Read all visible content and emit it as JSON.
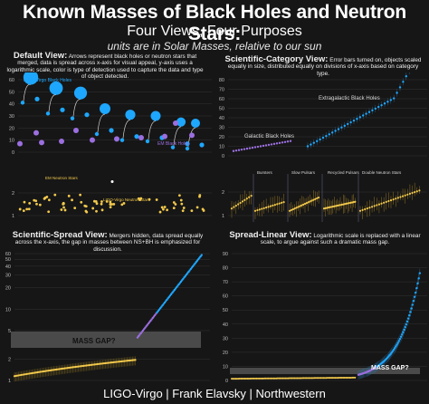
{
  "header": {
    "title": "Known Masses of Black Holes and Neutron Stars:",
    "subtitle": "Four Views, Four Purposes",
    "note": "units are in Solar Masses, relative to our sun"
  },
  "panels": {
    "default": {
      "name": "Default View:",
      "desc": "Arrows represent black holes or neutron stars that merged, data is spread across x-axis for visual appeal, y-axis uses a logarithmic scale, color is type of detection used to capture the data and type of object detected.",
      "labels": {
        "ligo": "LIGO-Virgo Black Holes",
        "em_bh": "EM Black Holes",
        "em_ns": "EM Neutron Stars",
        "ligo_ns": "LIGO-Virgo Neutron Stars"
      }
    },
    "category": {
      "name": "Scientific-Category View:",
      "desc": "Error bars turned on, objects scaled equally in size, distributed equally on divisions of x-axis based on category type.",
      "labels": {
        "galactic": "Galactic Black Holes",
        "extragalactic": "Extragalactic Black Holes",
        "bursters": "Bursters",
        "slow": "Slow Pulsars",
        "recycled": "Recycled Pulsars",
        "double": "Double Neutron Stars"
      }
    },
    "spread": {
      "name": "Scientific-Spread View:",
      "desc": "Mergers hidden, data spread equally across the x-axis, the gap in masses between NS+BH is emphasized for discussion.",
      "gap_label": "MASS GAP?"
    },
    "linear": {
      "name": "Spread-Linear View:",
      "desc": "Logarithmic scale is replaced with a linear scale, to argue against such a dramatic mass gap.",
      "gap_label": "MASS GAP?"
    }
  },
  "footer": "LIGO-Virgo | Frank Elavsky | Northwestern",
  "colors": {
    "ligo_bh": "#1ea7ff",
    "em_bh": "#9b6fe0",
    "em_ns": "#f2c94c",
    "gap": "#4a4a4a",
    "grid": "#3a3a3a"
  },
  "chart_data": [
    {
      "type": "scatter",
      "name": "Default View",
      "yscale": "log",
      "yticks_top": [
        0,
        10,
        20,
        30,
        40,
        50,
        60
      ],
      "yticks_bottom": [
        1,
        2
      ],
      "series": [
        {
          "name": "LIGO-Virgo Black Holes",
          "values": [
            62,
            53,
            49,
            36,
            31,
            30,
            25,
            24,
            23,
            21,
            20,
            18,
            14,
            13,
            8,
            7,
            50,
            35,
            22
          ]
        },
        {
          "name": "EM Black Holes",
          "values": [
            4,
            5,
            6,
            7,
            8,
            9,
            10,
            11,
            13,
            15,
            21
          ]
        },
        {
          "name": "EM Neutron Stars",
          "values": [
            1.3,
            1.4,
            1.5,
            1.6,
            1.7,
            1.8,
            1.9,
            2.0,
            1.2,
            1.1
          ]
        },
        {
          "name": "LIGO-Virgo Neutron Stars",
          "values": [
            1.2,
            1.5,
            2.7
          ]
        }
      ]
    },
    {
      "type": "scatter",
      "name": "Scientific-Category View",
      "yscale": "log",
      "yticks_top": [
        0,
        10,
        20,
        30,
        40,
        50,
        60,
        70,
        80
      ],
      "yticks_bottom": [
        1,
        2
      ],
      "categories": [
        "Galactic Black Holes",
        "Extragalactic Black Holes",
        "Bursters",
        "Slow Pulsars",
        "Recycled Pulsars",
        "Double Neutron Stars"
      ]
    },
    {
      "type": "scatter",
      "name": "Scientific-Spread View",
      "yscale": "log",
      "yticks": [
        1,
        2,
        5,
        10,
        20,
        30,
        40,
        50,
        60
      ],
      "annotation": "MASS GAP?"
    },
    {
      "type": "scatter",
      "name": "Spread-Linear View",
      "yscale": "linear",
      "yticks": [
        0,
        10,
        20,
        30,
        40,
        50,
        60,
        70,
        80,
        90
      ],
      "annotation": "MASS GAP?"
    }
  ]
}
